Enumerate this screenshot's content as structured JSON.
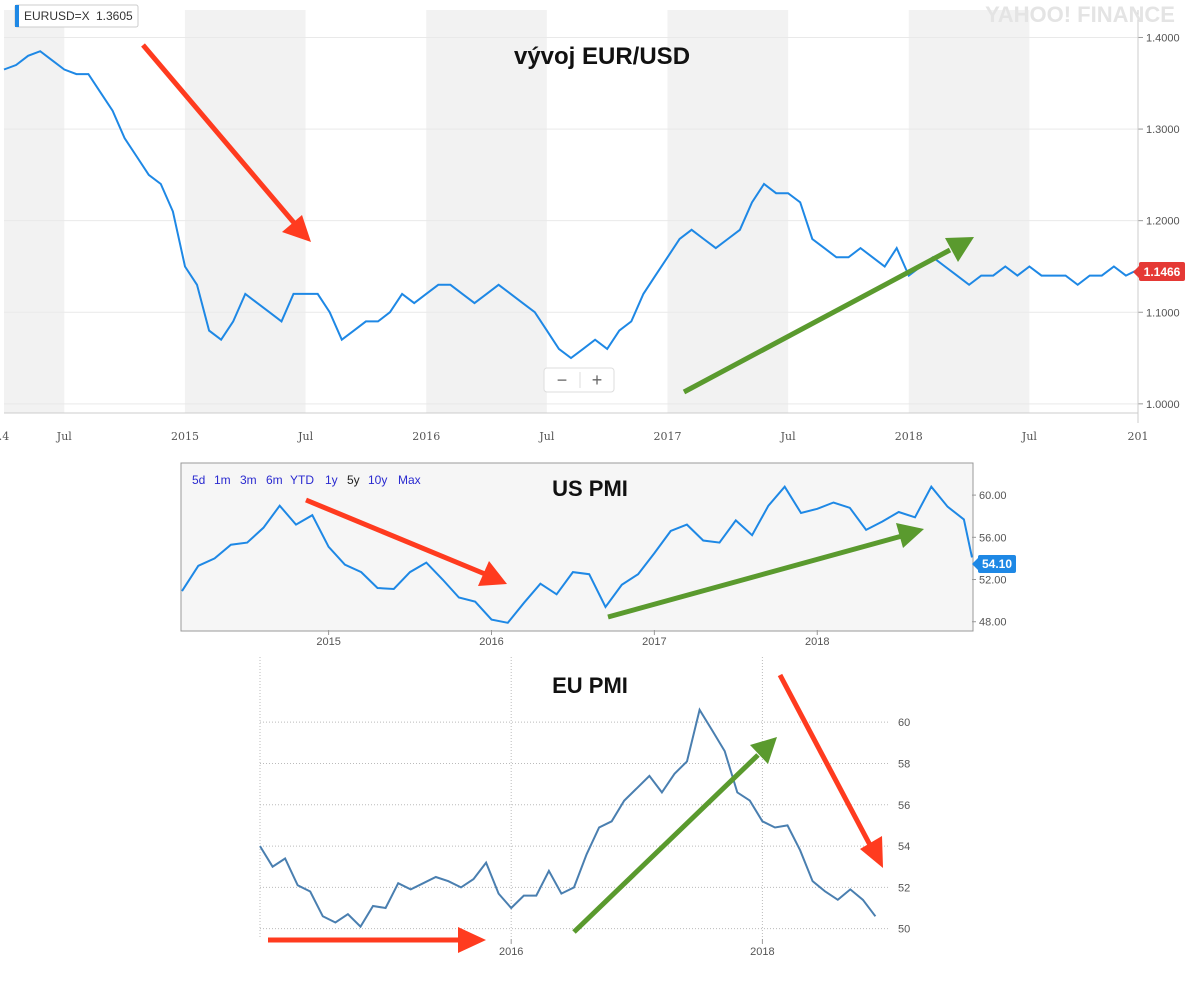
{
  "colors": {
    "line": "#1e88e5",
    "eu_line": "#4a7fb0",
    "red_arrow": "#ff3b1f",
    "green_arrow": "#5a9a2e",
    "price_badge": "#e53935",
    "pmi_badge": "#1e88e5"
  },
  "chart_data": [
    {
      "type": "line",
      "title": "vývoj EUR/USD",
      "ticker_label": "EURUSD=X",
      "ticker_value": "1.3605",
      "last_value_label": "1.1466",
      "watermark": "YAHOO! FINANCE",
      "x_tick_labels": [
        ".4",
        "Jul",
        "2015",
        "Jul",
        "2016",
        "Jul",
        "2017",
        "Jul",
        "2018",
        "Jul",
        "201"
      ],
      "y_tick_labels": [
        "1.4000",
        "1.3000",
        "1.2000",
        "1.1000",
        "1.0000"
      ],
      "ylim": [
        0.99,
        1.43
      ],
      "xlim": [
        2014.25,
        2018.95
      ],
      "grid": true,
      "zoom_controls": {
        "minus": "−",
        "plus": "+"
      },
      "series": [
        {
          "x": [
            2014.25,
            2014.3,
            2014.35,
            2014.4,
            2014.45,
            2014.5,
            2014.55,
            2014.6,
            2014.65,
            2014.7,
            2014.75,
            2014.8,
            2014.85,
            2014.9,
            2014.95,
            2015.0,
            2015.05,
            2015.1,
            2015.15,
            2015.2,
            2015.25,
            2015.3,
            2015.35,
            2015.4,
            2015.45,
            2015.5,
            2015.55,
            2015.6,
            2015.65,
            2015.7,
            2015.75,
            2015.8,
            2015.85,
            2015.9,
            2015.95,
            2016.0,
            2016.05,
            2016.1,
            2016.15,
            2016.2,
            2016.25,
            2016.3,
            2016.35,
            2016.4,
            2016.45,
            2016.5,
            2016.55,
            2016.6,
            2016.65,
            2016.7,
            2016.75,
            2016.8,
            2016.85,
            2016.9,
            2016.95,
            2017.0,
            2017.05,
            2017.1,
            2017.15,
            2017.2,
            2017.25,
            2017.3,
            2017.35,
            2017.4,
            2017.45,
            2017.5,
            2017.55,
            2017.6,
            2017.65,
            2017.7,
            2017.75,
            2017.8,
            2017.85,
            2017.9,
            2017.95,
            2018.0,
            2018.05,
            2018.1,
            2018.15,
            2018.2,
            2018.25,
            2018.3,
            2018.35,
            2018.4,
            2018.45,
            2018.5,
            2018.55,
            2018.6,
            2018.65,
            2018.7,
            2018.75,
            2018.8,
            2018.85,
            2018.9,
            2018.95
          ],
          "y": [
            1.365,
            1.37,
            1.38,
            1.385,
            1.375,
            1.365,
            1.36,
            1.36,
            1.34,
            1.32,
            1.29,
            1.27,
            1.25,
            1.24,
            1.21,
            1.15,
            1.13,
            1.08,
            1.07,
            1.09,
            1.12,
            1.11,
            1.1,
            1.09,
            1.12,
            1.12,
            1.12,
            1.1,
            1.07,
            1.08,
            1.09,
            1.09,
            1.1,
            1.12,
            1.11,
            1.12,
            1.13,
            1.13,
            1.12,
            1.11,
            1.12,
            1.13,
            1.12,
            1.11,
            1.1,
            1.08,
            1.06,
            1.05,
            1.06,
            1.07,
            1.06,
            1.08,
            1.09,
            1.12,
            1.14,
            1.16,
            1.18,
            1.19,
            1.18,
            1.17,
            1.18,
            1.19,
            1.22,
            1.24,
            1.23,
            1.23,
            1.22,
            1.18,
            1.17,
            1.16,
            1.16,
            1.17,
            1.16,
            1.15,
            1.17,
            1.14,
            1.15,
            1.16,
            1.15,
            1.14,
            1.13,
            1.14,
            1.14,
            1.15,
            1.14,
            1.15,
            1.14,
            1.14,
            1.14,
            1.13,
            1.14,
            1.14,
            1.15,
            1.14,
            1.1466
          ]
        }
      ]
    },
    {
      "type": "line",
      "title": "US PMI",
      "ranges": [
        "5d",
        "1m",
        "3m",
        "6m",
        "YTD",
        "1y",
        "5y",
        "10y",
        "Max"
      ],
      "active_range": "5y",
      "last_value_label": "54.10",
      "x_tick_labels": [
        "2015",
        "2016",
        "2017",
        "2018"
      ],
      "y_tick_labels": [
        "60.00",
        "56.00",
        "52.00",
        "48.00"
      ],
      "ylim": [
        47.5,
        62
      ],
      "xlim": [
        2014.1,
        2018.95
      ],
      "series": [
        {
          "x": [
            2014.1,
            2014.2,
            2014.3,
            2014.4,
            2014.5,
            2014.6,
            2014.7,
            2014.8,
            2014.9,
            2015.0,
            2015.1,
            2015.2,
            2015.3,
            2015.4,
            2015.5,
            2015.6,
            2015.7,
            2015.8,
            2015.9,
            2016.0,
            2016.1,
            2016.2,
            2016.3,
            2016.4,
            2016.5,
            2016.6,
            2016.7,
            2016.8,
            2016.9,
            2017.0,
            2017.1,
            2017.2,
            2017.3,
            2017.4,
            2017.5,
            2017.6,
            2017.7,
            2017.8,
            2017.9,
            2018.0,
            2018.1,
            2018.2,
            2018.3,
            2018.4,
            2018.5,
            2018.6,
            2018.7,
            2018.8,
            2018.9,
            2018.95
          ],
          "y": [
            50.9,
            53.3,
            54.0,
            55.3,
            55.5,
            56.9,
            59.0,
            57.2,
            58.1,
            55.1,
            53.4,
            52.7,
            51.2,
            51.1,
            52.7,
            53.6,
            52.0,
            50.3,
            49.9,
            48.2,
            47.9,
            49.8,
            51.6,
            50.6,
            52.7,
            52.5,
            49.4,
            51.5,
            52.5,
            54.5,
            56.6,
            57.2,
            55.7,
            55.5,
            57.6,
            56.2,
            59.0,
            60.8,
            58.3,
            58.7,
            59.3,
            58.8,
            56.7,
            57.5,
            58.4,
            57.9,
            60.8,
            58.9,
            57.7,
            54.1
          ]
        }
      ]
    },
    {
      "type": "line",
      "title": "EU PMI",
      "x_tick_labels": [
        "2016",
        "2018"
      ],
      "y_tick_labels": [
        "60",
        "58",
        "56",
        "54",
        "52",
        "50"
      ],
      "ylim": [
        49.5,
        61.8
      ],
      "xlim": [
        2014.0,
        2019.0
      ],
      "grid": true,
      "series": [
        {
          "x": [
            2014.0,
            2014.1,
            2014.2,
            2014.3,
            2014.4,
            2014.5,
            2014.6,
            2014.7,
            2014.8,
            2014.9,
            2015.0,
            2015.1,
            2015.2,
            2015.3,
            2015.4,
            2015.5,
            2015.6,
            2015.7,
            2015.8,
            2015.9,
            2016.0,
            2016.1,
            2016.2,
            2016.3,
            2016.4,
            2016.5,
            2016.6,
            2016.7,
            2016.8,
            2016.9,
            2017.0,
            2017.1,
            2017.2,
            2017.3,
            2017.4,
            2017.5,
            2017.6,
            2017.7,
            2017.8,
            2017.9,
            2018.0,
            2018.1,
            2018.2,
            2018.3,
            2018.4,
            2018.5,
            2018.6,
            2018.7,
            2018.8,
            2018.9
          ],
          "y": [
            54.0,
            53.0,
            53.4,
            52.1,
            51.8,
            50.6,
            50.3,
            50.7,
            50.1,
            51.1,
            51.0,
            52.2,
            51.9,
            52.2,
            52.5,
            52.3,
            52.0,
            52.4,
            53.2,
            51.7,
            51.0,
            51.6,
            51.6,
            52.8,
            51.7,
            52.0,
            53.6,
            54.9,
            55.2,
            56.2,
            56.8,
            57.4,
            56.6,
            57.5,
            58.1,
            60.6,
            59.6,
            58.6,
            56.6,
            56.2,
            55.2,
            54.9,
            55.0,
            53.8,
            52.3,
            51.8,
            51.4,
            51.9,
            51.4,
            50.6
          ]
        }
      ]
    }
  ]
}
